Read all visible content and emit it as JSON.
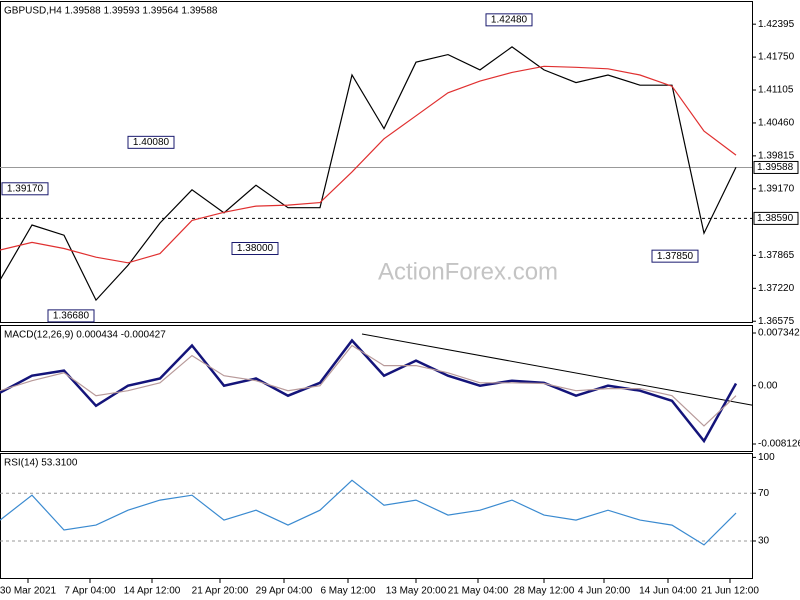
{
  "watermark": "ActionForex.com",
  "chart_data": [
    {
      "type": "line",
      "title": "GBPUSD,H4 1.39588 1.39593 1.39564 1.39588",
      "x": [
        0,
        8,
        16,
        24,
        32,
        40,
        48,
        56,
        64,
        72,
        80,
        88,
        96,
        104,
        112,
        120,
        128,
        136,
        144,
        152,
        160,
        168,
        176,
        184
      ],
      "xlim": [
        0,
        188
      ],
      "ylim": [
        1.3656,
        1.4281
      ],
      "yticks": [
        1.42395,
        {
          "value": 1.4175,
          "label": "1.41750"
        },
        1.41105,
        {
          "value": 1.4046,
          "label": "1.40460"
        },
        1.39815,
        {
          "value": 1.3917,
          "label": "1.39170"
        },
        1.37865,
        {
          "value": 1.3722,
          "label": "1.37220"
        },
        1.36575
      ],
      "series": [
        {
          "color": "#000000",
          "values": [
            1.3738,
            1.3846,
            1.3826,
            1.3699,
            1.3767,
            1.385,
            1.3915,
            1.387,
            1.3924,
            1.388,
            1.388,
            1.414,
            1.4035,
            1.4165,
            1.418,
            1.415,
            1.4195,
            1.415,
            1.4125,
            1.414,
            1.412,
            1.412,
            1.383,
            1.3959
          ]
        },
        {
          "color": "#e03030",
          "values": [
            1.3797,
            1.3812,
            1.38,
            1.3783,
            1.3772,
            1.379,
            1.3855,
            1.3871,
            1.3883,
            1.3885,
            1.389,
            1.395,
            1.4015,
            1.406,
            1.4105,
            1.4128,
            1.4145,
            1.4157,
            1.4155,
            1.4152,
            1.414,
            1.4118,
            1.403,
            1.3983
          ]
        }
      ],
      "hlines": [
        {
          "value": 1.39588,
          "label": "1.39588",
          "style": "solid"
        },
        {
          "value": 1.3859,
          "label": "1.38590",
          "style": "dashed"
        }
      ],
      "annotations": [
        {
          "x": 133.5,
          "value": 1.4248,
          "label": "1.42480"
        },
        {
          "x": 44,
          "value": 1.4008,
          "label": "1.40080"
        },
        {
          "x": 12.5,
          "value": 1.3917,
          "label": "1.39170"
        },
        {
          "x": 70,
          "value": 1.38,
          "label": "1.38000"
        },
        {
          "x": 175,
          "value": 1.3785,
          "label": "1.37850"
        },
        {
          "x": 24,
          "value": 1.3668,
          "label": "1.36680"
        }
      ]
    },
    {
      "type": "line",
      "title": "MACD(12,26,9) 0.000434 -0.000427",
      "x": [
        0,
        8,
        16,
        24,
        32,
        40,
        48,
        56,
        64,
        72,
        80,
        88,
        96,
        104,
        112,
        120,
        128,
        136,
        144,
        152,
        160,
        168,
        176,
        184
      ],
      "xlim": [
        0,
        188
      ],
      "ylim": [
        -0.0091,
        0.00818
      ],
      "yticks": [
        0.007342,
        {
          "value": 0,
          "label": "0.00"
        },
        -0.008126
      ],
      "series": [
        {
          "color": "#14147a",
          "values": [
            -0.00097,
            0.0014,
            0.0021,
            -0.0028,
            0,
            0.001,
            0.0056,
            0,
            0.001,
            -0.0014,
            0.0004,
            0.0063,
            0.0014,
            0.0035,
            0.0014,
            0,
            0.0007,
            0.0004,
            -0.0014,
            0,
            -0.0007,
            -0.0021,
            -0.0077,
            0.0003
          ]
        },
        {
          "color": "#b89a9a",
          "values": [
            -0.0007,
            0.0007,
            0.0018,
            -0.0014,
            -0.0007,
            0.0004,
            0.0042,
            0.0014,
            0.0007,
            -0.0007,
            0,
            0.0056,
            0.0028,
            0.0028,
            0.0018,
            0.0004,
            0.0004,
            0.0003,
            -0.0007,
            -0.0004,
            -0.0004,
            -0.0014,
            -0.0056,
            -0.0014
          ]
        }
      ],
      "trendline": {
        "color": "#000000",
        "x": [
          90.5,
          188
        ],
        "values": [
          0.0072,
          -0.0027
        ]
      }
    },
    {
      "type": "line",
      "title": "RSI(14) 53.3100",
      "x": [
        0,
        8,
        16,
        24,
        32,
        40,
        48,
        56,
        64,
        72,
        80,
        88,
        96,
        104,
        112,
        120,
        128,
        136,
        144,
        152,
        160,
        168,
        176,
        184
      ],
      "xlim": [
        0,
        188
      ],
      "ylim": [
        -1,
        102
      ],
      "yticks": [
        100,
        70,
        30
      ],
      "series": [
        {
          "color": "#3a8ad0",
          "values": [
            47.5,
            68.3,
            39.2,
            43.3,
            55.8,
            64.2,
            68.3,
            47.5,
            55.8,
            43.3,
            55.8,
            80.8,
            60,
            64.2,
            51.7,
            55.8,
            64.2,
            51.7,
            47.5,
            55.8,
            47.5,
            43.3,
            26.7,
            53.31
          ]
        }
      ],
      "hlines": [
        {
          "value": 70,
          "style": "dashed"
        },
        {
          "value": 30,
          "style": "dashed"
        }
      ],
      "xticks": [
        {
          "value": 7,
          "label": "30 Mar 2021"
        },
        {
          "value": 22.5,
          "label": "7 Apr 04:00"
        },
        {
          "value": 38,
          "label": "14 Apr 12:00"
        },
        {
          "value": 55,
          "label": "21 Apr 20:00"
        },
        {
          "value": 71,
          "label": "29 Apr 04:00"
        },
        {
          "value": 87,
          "label": "6 May 12:00"
        },
        {
          "value": 104,
          "label": "13 May 20:00"
        },
        {
          "value": 119.5,
          "label": "21 May 04:00"
        },
        {
          "value": 136,
          "label": "28 May 12:00"
        },
        {
          "value": 151,
          "label": "4 Jun 20:00"
        },
        {
          "value": 167,
          "label": "14 Jun 04:00"
        },
        {
          "value": 182.5,
          "label": "21 Jun 12:00"
        }
      ]
    }
  ]
}
